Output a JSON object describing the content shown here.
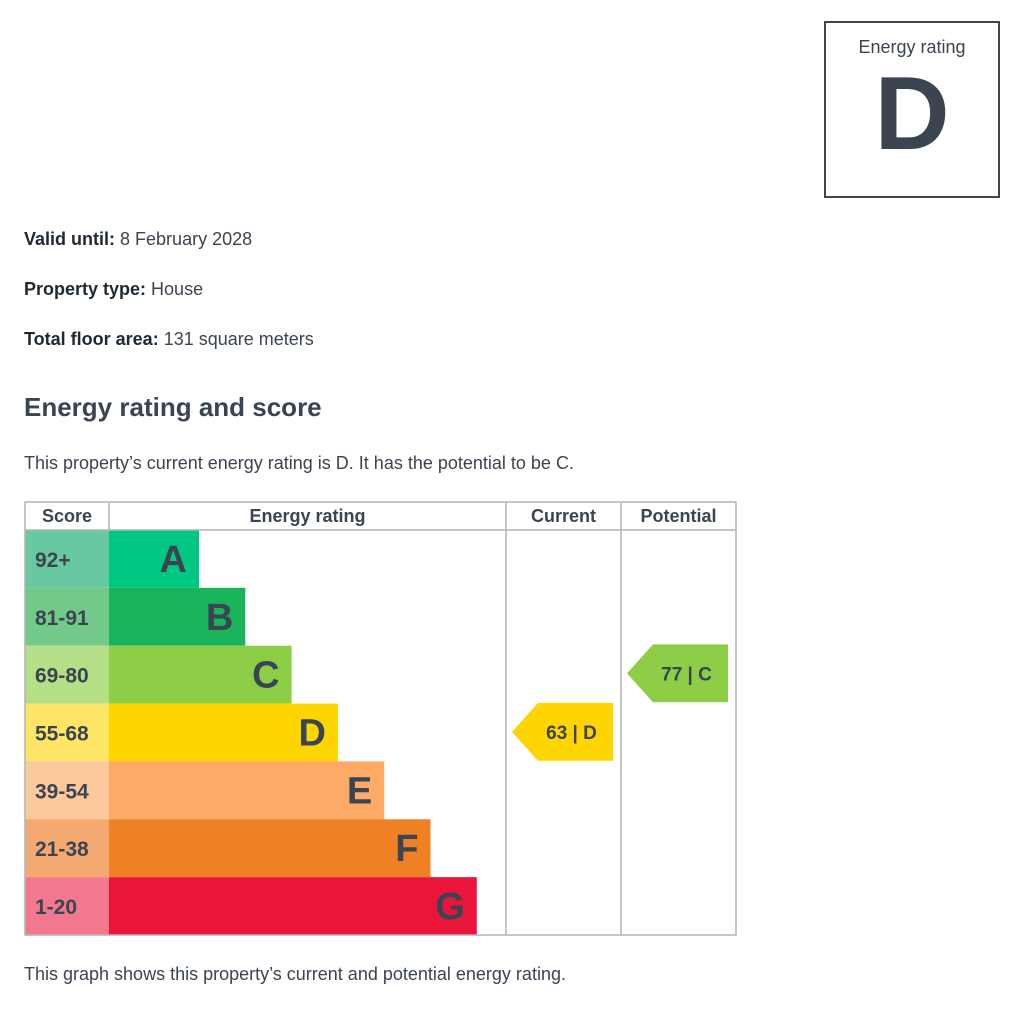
{
  "summary": {
    "rating_box_label": "Energy rating",
    "rating_box_value": "D",
    "valid_until_label": "Valid until:",
    "valid_until_value": "8 February 2028",
    "property_type_label": "Property type:",
    "property_type_value": "House",
    "floor_area_label": "Total floor area:",
    "floor_area_value": "131 square meters"
  },
  "section": {
    "heading": "Energy rating and score",
    "intro": "This property’s current energy rating is D. It has the potential to be C.",
    "caption": "This graph shows this property’s current and potential energy rating."
  },
  "chart_data": {
    "type": "table",
    "headers": {
      "score": "Score",
      "rating": "Energy rating",
      "current": "Current",
      "potential": "Potential"
    },
    "bands": [
      {
        "letter": "A",
        "range": "92+",
        "color": "#00c781",
        "score_color": "#68c9a1"
      },
      {
        "letter": "B",
        "range": "81-91",
        "color": "#19b459",
        "score_color": "#72c98a"
      },
      {
        "letter": "C",
        "range": "69-80",
        "color": "#8dce46",
        "score_color": "#b5df86"
      },
      {
        "letter": "D",
        "range": "55-68",
        "color": "#ffd500",
        "score_color": "#ffe566"
      },
      {
        "letter": "E",
        "range": "39-54",
        "color": "#fcaa65",
        "score_color": "#fdc89b"
      },
      {
        "letter": "F",
        "range": "21-38",
        "color": "#ef8023",
        "score_color": "#f4a970"
      },
      {
        "letter": "G",
        "range": "1-20",
        "color": "#e9153b",
        "score_color": "#f1788e"
      }
    ],
    "current": {
      "score": 63,
      "band": "D",
      "label": "63 | D"
    },
    "potential": {
      "score": 77,
      "band": "C",
      "label": "77 | C"
    },
    "colors": {
      "grid": "#b1b4b6",
      "text": "#3b4552"
    }
  }
}
